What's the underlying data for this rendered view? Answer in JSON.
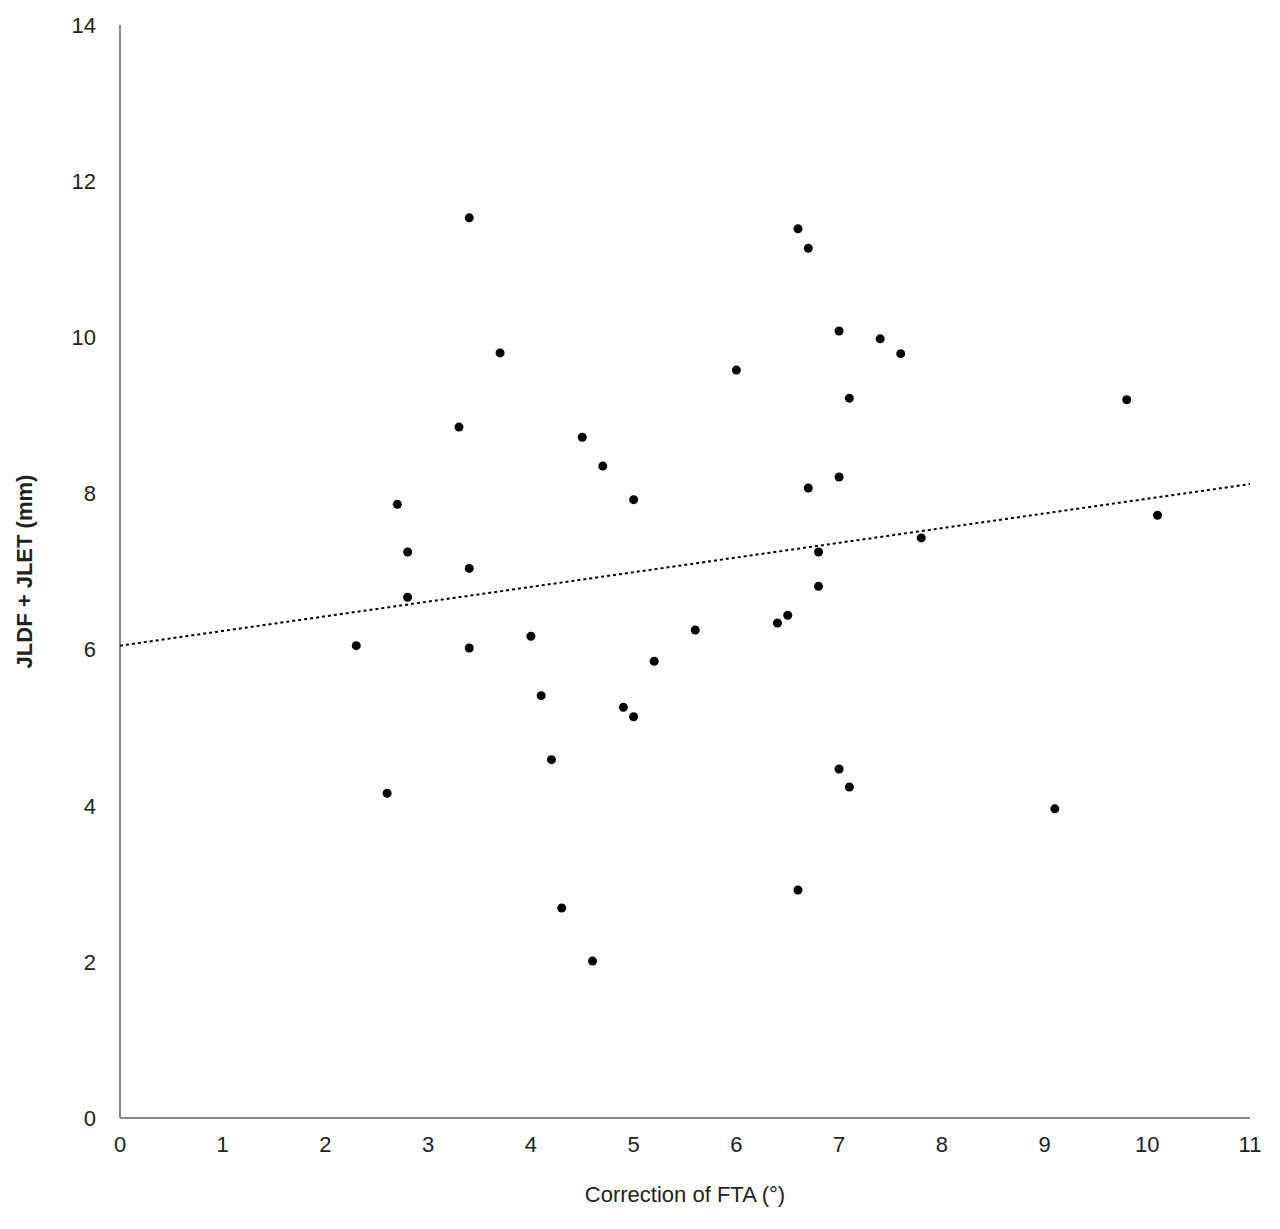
{
  "chart_data": {
    "type": "scatter",
    "x_label": "Correction of FTA (°)",
    "y_label": "JLDF + JLET (mm)",
    "xlim": [
      0,
      11
    ],
    "xticks": [
      0,
      1,
      2,
      3,
      4,
      5,
      6,
      7,
      8,
      9,
      10,
      11
    ],
    "ylim": [
      0,
      14
    ],
    "yticks": [
      0,
      2,
      4,
      6,
      8,
      10,
      12,
      14
    ],
    "grid": false,
    "series": [
      {
        "type": "scatter",
        "color": "#000000",
        "marker": "circle",
        "x": [
          2.3,
          2.6,
          2.7,
          2.8,
          2.8,
          3.3,
          3.4,
          3.4,
          3.4,
          3.7,
          4.0,
          4.1,
          4.2,
          4.3,
          4.5,
          4.6,
          4.7,
          4.9,
          5.0,
          5.0,
          5.2,
          5.6,
          6.0,
          6.4,
          6.5,
          6.6,
          6.6,
          6.7,
          6.7,
          6.8,
          6.8,
          7.0,
          7.0,
          7.0,
          7.1,
          7.1,
          7.4,
          7.6,
          7.8,
          9.1,
          9.8,
          10.1
        ],
        "values": [
          6.05,
          4.16,
          7.86,
          7.25,
          6.67,
          8.85,
          11.53,
          7.04,
          6.02,
          9.8,
          6.17,
          5.41,
          4.59,
          2.69,
          8.72,
          2.01,
          8.35,
          5.26,
          7.92,
          5.14,
          5.85,
          6.25,
          9.58,
          6.34,
          6.44,
          11.39,
          2.92,
          11.14,
          8.07,
          7.25,
          6.81,
          10.08,
          8.21,
          4.47,
          9.22,
          4.24,
          9.98,
          9.79,
          7.43,
          3.96,
          9.2,
          7.72
        ]
      },
      {
        "type": "line",
        "color": "#000000",
        "line_style": "dotted",
        "x": [
          0,
          11
        ],
        "values": [
          6.05,
          8.12
        ]
      }
    ]
  }
}
